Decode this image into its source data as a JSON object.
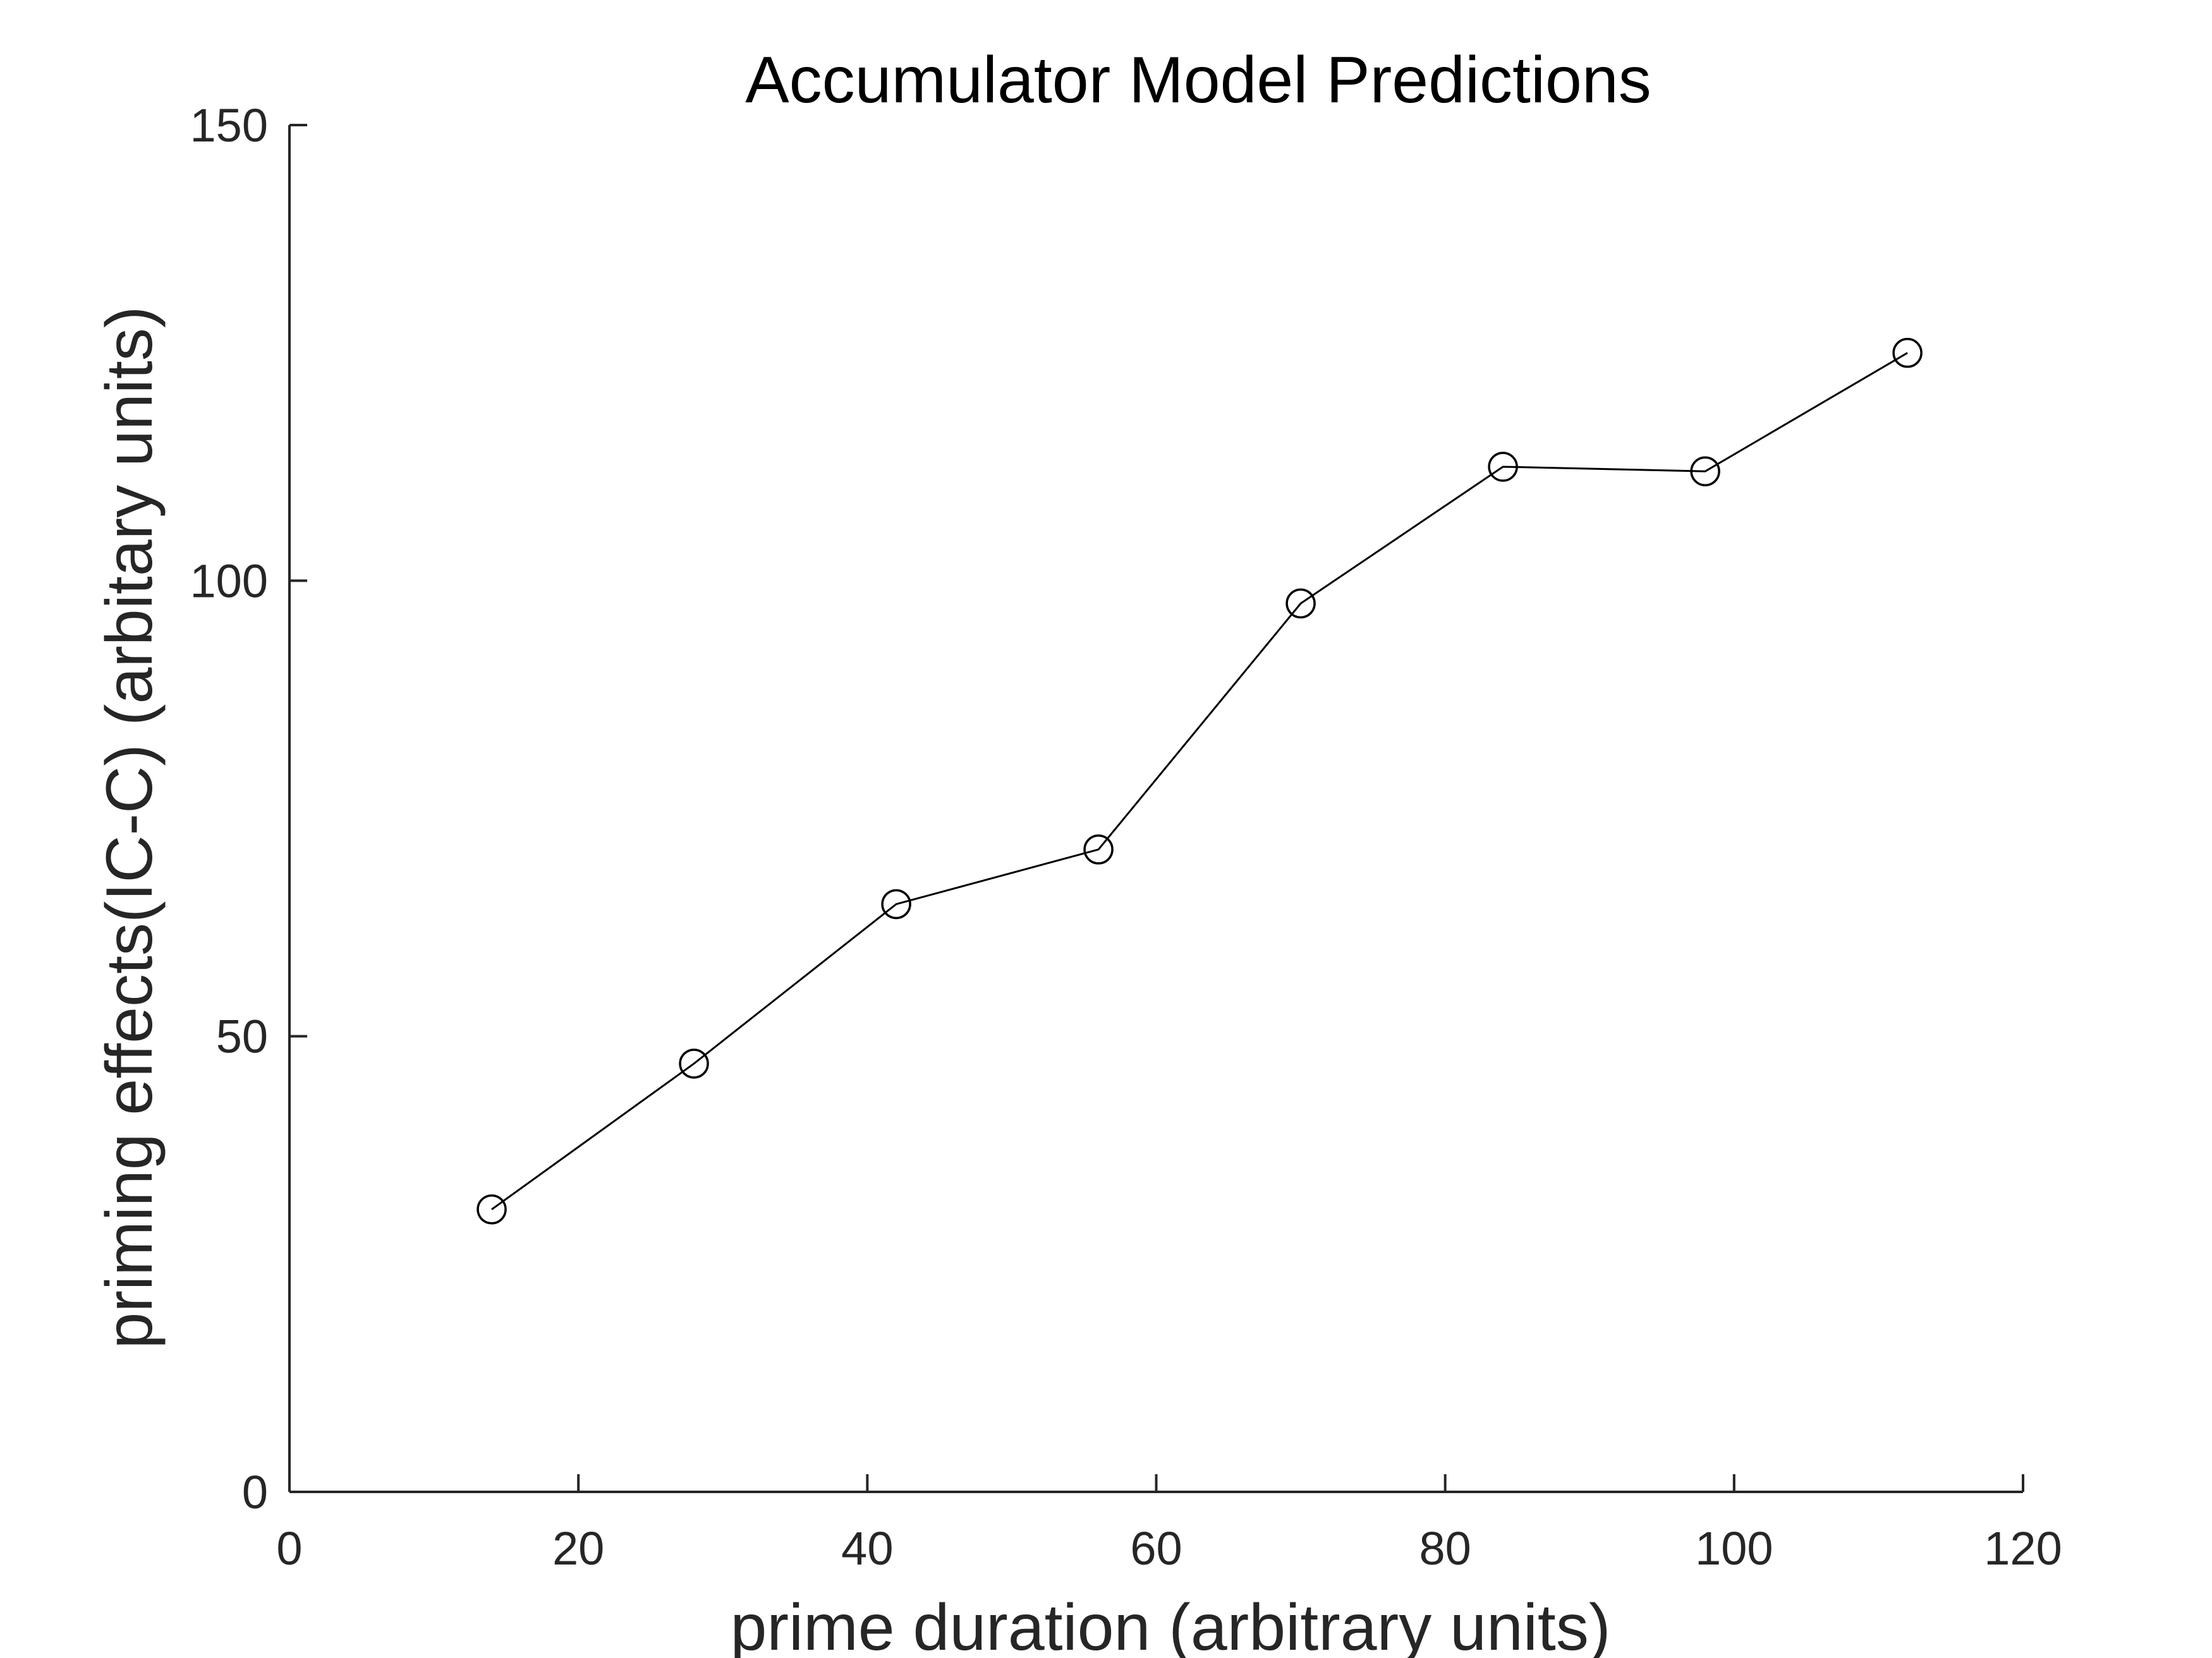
{
  "chart_data": {
    "type": "line",
    "title": "Accumulator Model Predictions",
    "xlabel": "prime duration (arbitrary units)",
    "ylabel": "priming effects(IC-C) (arbitary units)",
    "xlim": [
      0,
      120
    ],
    "ylim": [
      0,
      150
    ],
    "xticks": [
      0,
      20,
      40,
      60,
      80,
      100,
      120
    ],
    "yticks": [
      0,
      50,
      100,
      150
    ],
    "grid": false,
    "marker": "open-circle",
    "colors": {
      "line": "#000000",
      "axis": "#262626"
    },
    "series": [
      {
        "x": [
          14,
          28,
          42,
          56,
          70,
          84,
          98,
          112
        ],
        "y": [
          31,
          47,
          64.5,
          70.5,
          97.5,
          112.5,
          112,
          125
        ]
      }
    ]
  }
}
